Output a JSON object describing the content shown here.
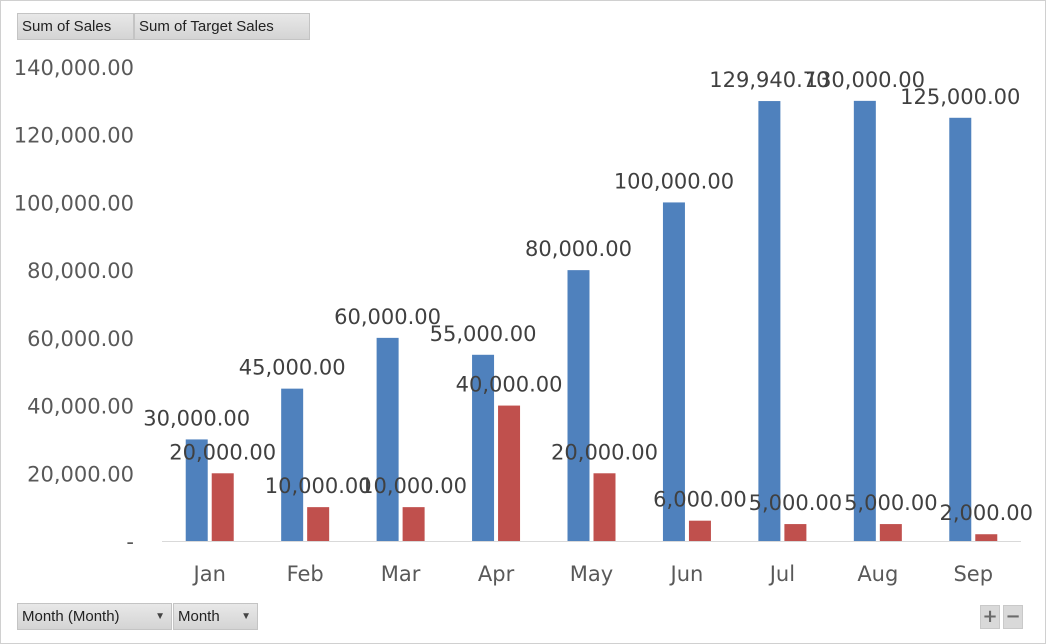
{
  "legend_buttons": [
    {
      "label": "Sum of Sales"
    },
    {
      "label": "Sum of Target Sales"
    }
  ],
  "axis_buttons": [
    {
      "label": "Month (Month)"
    },
    {
      "label": "Month"
    }
  ],
  "zoom": {
    "plus": "+",
    "minus": "−"
  },
  "colors": {
    "sales": "#4F81BD",
    "target": "#C0504D",
    "axis_text": "#595959",
    "label_text": "#404040"
  },
  "chart_data": {
    "type": "bar",
    "categories": [
      "Jan",
      "Feb",
      "Mar",
      "Apr",
      "May",
      "Jun",
      "Jul",
      "Aug",
      "Sep"
    ],
    "series": [
      {
        "name": "Sum of Sales",
        "values": [
          30000,
          45000,
          60000,
          55000,
          80000,
          100000,
          129940.7,
          130000,
          125000
        ],
        "labels": [
          "30,000.00",
          "45,000.00",
          "60,000.00",
          "55,000.00",
          "80,000.00",
          "100,000.00",
          "129,940.70",
          "130,000.00",
          "125,000.00"
        ]
      },
      {
        "name": "Sum of Target Sales",
        "values": [
          20000,
          10000,
          10000,
          40000,
          20000,
          6000,
          5000,
          5000,
          2000
        ],
        "labels": [
          "20,000.00",
          "10,000.00",
          "10,000.00",
          "40,000.00",
          "20,000.00",
          "6,000.00",
          "5,000.00",
          "5,000.00",
          "2,000.00"
        ]
      }
    ],
    "ylim": [
      0,
      140000
    ],
    "y_ticks": [
      0,
      20000,
      40000,
      60000,
      80000,
      100000,
      120000,
      140000
    ],
    "y_tick_labels": [
      "-",
      "20,000.00",
      "40,000.00",
      "60,000.00",
      "80,000.00",
      "100,000.00",
      "120,000.00",
      "140,000.00"
    ],
    "grid": false,
    "legend": "top-left"
  }
}
